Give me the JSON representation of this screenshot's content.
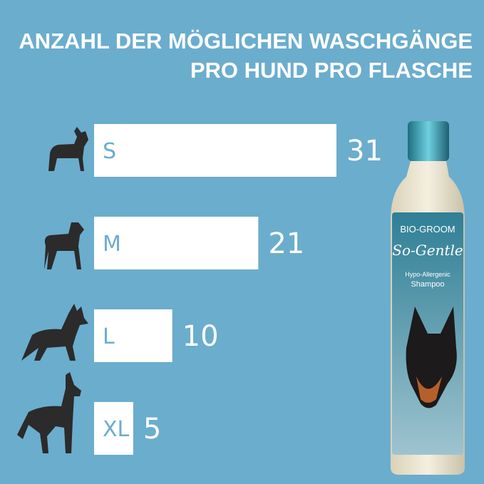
{
  "title_lines": [
    "ANZAHL DER MÖGLICHEN WASCHGÄNGE",
    "PRO HUND PRO FLASCHE"
  ],
  "colors": {
    "background": "#6badcd",
    "bar": "#ffffff",
    "bar_label": "#6badcd",
    "value_label": "#ffffff",
    "dog_silhouette": "#2b2b2b"
  },
  "chart_data": {
    "type": "bar",
    "orientation": "horizontal",
    "title": "ANZAHL DER MÖGLICHEN WASCHGÄNGE PRO HUND PRO FLASCHE",
    "categories": [
      "S",
      "M",
      "L",
      "XL"
    ],
    "values": [
      31,
      21,
      10,
      5
    ],
    "category_icons": [
      "small-dog-icon",
      "medium-dog-icon",
      "large-dog-icon",
      "xl-dog-icon"
    ],
    "grid": false,
    "xlim": [
      0,
      31
    ]
  },
  "product": {
    "brand": "BIO-GROOM",
    "name": "So-Gentle",
    "line1": "Hypo-Allergenic",
    "line2": "Shampoo"
  }
}
